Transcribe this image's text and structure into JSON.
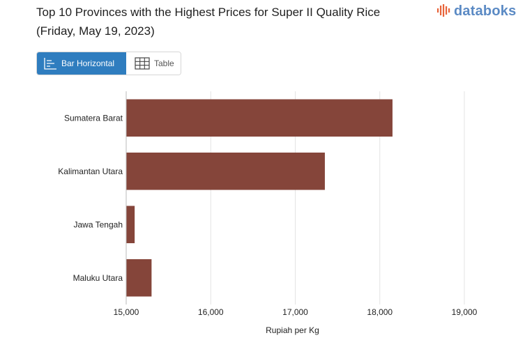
{
  "header": {
    "title": "Top 10 Provinces with the Highest Prices for Super II Quality Rice (Friday, May 19, 2023)"
  },
  "logo": {
    "text": "databoks",
    "color": "#5b8ac4",
    "icon": "bars-logo-icon"
  },
  "view_toggle": {
    "bar_label": "Bar Horizontal",
    "table_label": "Table",
    "active": "bar",
    "active_color": "#2f7dbf"
  },
  "chart_data": {
    "type": "bar",
    "orientation": "horizontal",
    "categories": [
      "Sumatera Barat",
      "Kalimantan Utara",
      "Jawa Tengah",
      "Maluku Utara"
    ],
    "values": [
      18150,
      17350,
      15100,
      15300
    ],
    "xlabel": "Rupiah per Kg",
    "ylabel": "",
    "xlim": [
      15000,
      19000
    ],
    "ticks": [
      15000,
      16000,
      17000,
      18000,
      19000
    ],
    "tick_labels": [
      "15,000",
      "16,000",
      "17,000",
      "18,000",
      "19,000"
    ],
    "bar_color": "#85453a",
    "grid": true,
    "legend": "none"
  }
}
